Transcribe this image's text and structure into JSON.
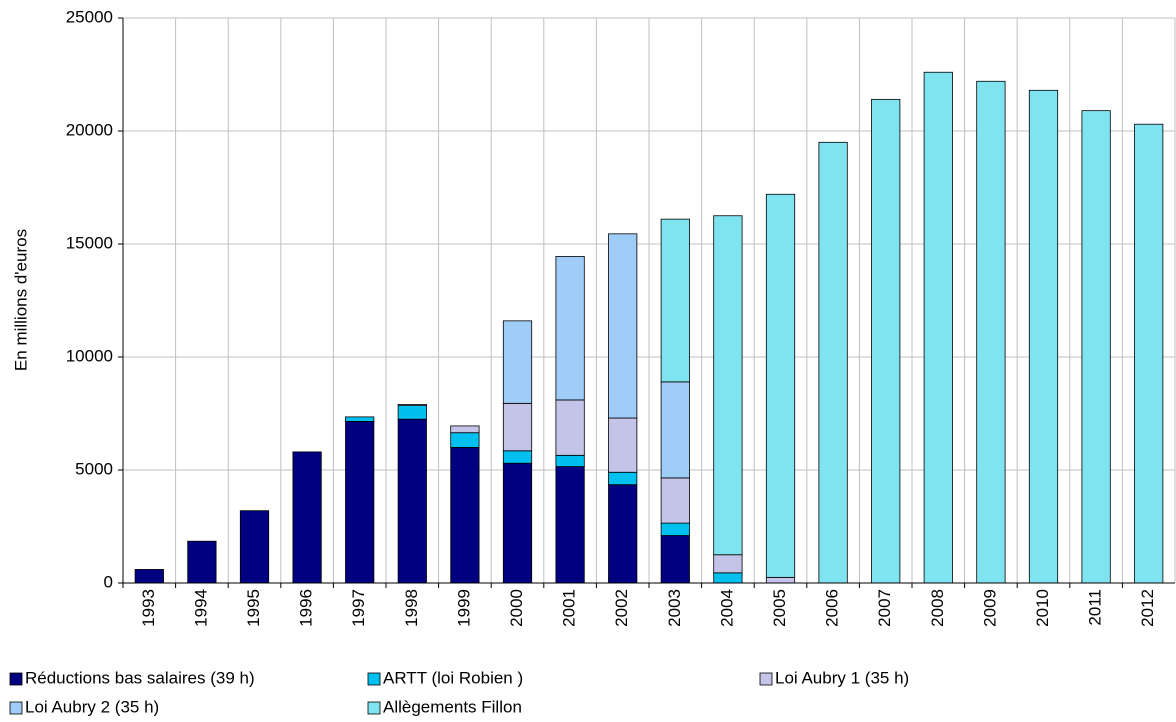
{
  "chart_data": {
    "type": "stacked_bar",
    "y_label": "En millions d'euros",
    "categories": [
      "1993",
      "1994",
      "1995",
      "1996",
      "1997",
      "1998",
      "1999",
      "2000",
      "2001",
      "2002",
      "2003",
      "2004",
      "2005",
      "2006",
      "2007",
      "2008",
      "2009",
      "2010",
      "2011",
      "2012"
    ],
    "series": [
      {
        "name": "Réductions bas salaires (39 h)",
        "color": "#000080",
        "values": [
          600,
          1850,
          3200,
          5800,
          7150,
          7250,
          6000,
          5300,
          5150,
          4350,
          2100,
          null,
          null,
          null,
          null,
          null,
          null,
          null,
          null,
          null
        ]
      },
      {
        "name": "ARTT (loi Robien )",
        "color": "#00c0f0",
        "values": [
          null,
          null,
          null,
          null,
          200,
          600,
          650,
          550,
          500,
          550,
          550,
          450,
          null,
          null,
          null,
          null,
          null,
          null,
          null,
          null
        ]
      },
      {
        "name": "Loi Aubry 1 (35 h)",
        "color": "#c4c4e8",
        "values": [
          null,
          null,
          null,
          null,
          null,
          50,
          300,
          2100,
          2450,
          2400,
          2000,
          800,
          250,
          null,
          null,
          null,
          null,
          null,
          null,
          null
        ]
      },
      {
        "name": "Loi Aubry 2 (35 h)",
        "color": "#a0ccf8",
        "values": [
          null,
          null,
          null,
          null,
          null,
          null,
          null,
          3650,
          6350,
          8150,
          4250,
          null,
          null,
          null,
          null,
          null,
          null,
          null,
          null,
          null
        ]
      },
      {
        "name": "Allègements Fillon",
        "color": "#80e4f0",
        "values": [
          null,
          null,
          null,
          null,
          null,
          null,
          null,
          null,
          null,
          null,
          7200,
          15000,
          16950,
          19500,
          21400,
          22600,
          22200,
          21800,
          20900,
          20300
        ]
      }
    ],
    "ylim": [
      0,
      25000
    ],
    "yticks": [
      0,
      5000,
      10000,
      15000,
      20000,
      25000
    ],
    "grid": true
  }
}
